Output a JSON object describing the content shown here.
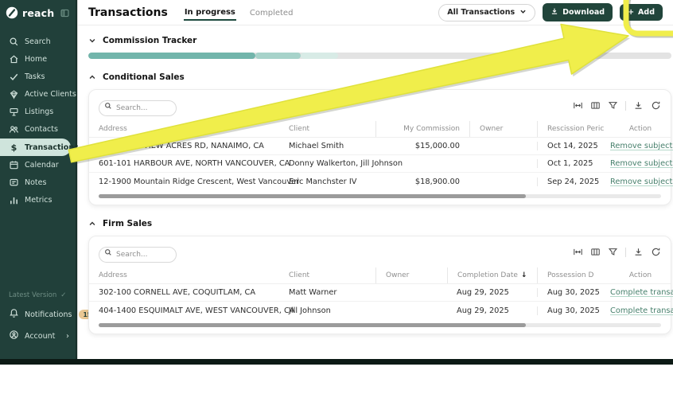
{
  "app": {
    "brand": "reach"
  },
  "sidebar": {
    "items": [
      {
        "label": "Search",
        "icon": "search-icon"
      },
      {
        "label": "Home",
        "icon": "home-icon"
      },
      {
        "label": "Tasks",
        "icon": "check-icon"
      },
      {
        "label": "Active Clients",
        "icon": "clients-gem-icon"
      },
      {
        "label": "Listings",
        "icon": "listing-sign-icon"
      },
      {
        "label": "Contacts",
        "icon": "contacts-icon"
      },
      {
        "label": "Transactions",
        "icon": "dollar-icon",
        "active": true
      },
      {
        "label": "Calendar",
        "icon": "calendar-icon"
      },
      {
        "label": "Notes",
        "icon": "notes-icon"
      },
      {
        "label": "Metrics",
        "icon": "metrics-icon"
      }
    ],
    "footer": {
      "version_label": "Latest Version",
      "version_check": "✓",
      "notifications_label": "Notifications",
      "notifications_count": "15",
      "account_label": "Account",
      "account_chevron": "›"
    }
  },
  "header": {
    "title": "Transactions",
    "tabs": [
      {
        "label": "In progress",
        "active": true
      },
      {
        "label": "Completed",
        "active": false
      }
    ],
    "filter_dropdown": "All Transactions",
    "download_label": "Download",
    "add_label": "Add",
    "add_plus": "+",
    "button_color": "#21453b"
  },
  "commission_tracker": {
    "title": "Commission Tracker",
    "track_color": "#e3e3e3",
    "segments": [
      {
        "color": "#72b5ab",
        "width_pct": 28.6
      },
      {
        "color": "#a7d3ca",
        "width_pct": 7.8
      },
      {
        "color": "#d8ebe6",
        "width_pct": 6.4
      }
    ]
  },
  "table_tools_icons": [
    "fit-columns-icon",
    "manage-columns-icon",
    "filter-icon",
    "download-icon",
    "refresh-icon"
  ],
  "conditional_sales": {
    "title": "Conditional Sales",
    "search_placeholder": "Search...",
    "columns": [
      "Address",
      "Client",
      "My Commission",
      "Owner",
      "Rescission Peric",
      "Action"
    ],
    "rows": [
      {
        "address": "2874 WESTVIEW ACRES RD, NANAIMO, CA",
        "client": "Michael Smith",
        "commission": "$15,000.00",
        "owner": "",
        "rescission": "Oct 14, 2025",
        "action": "Remove subjects"
      },
      {
        "address": "601-101 HARBOUR AVE, NORTH VANCOUVER, CA",
        "client": "Donny Walkerton, Jill Johnson",
        "commission": "",
        "owner": "",
        "rescission": "Oct 1, 2025",
        "action": "Remove subjects"
      },
      {
        "address": "12-1900 Mountain Ridge Crescent, West Vancouver",
        "client": "Eric Manchster IV",
        "commission": "$18,900.00",
        "owner": "",
        "rescission": "Sep 24, 2025",
        "action": "Remove subjects"
      }
    ]
  },
  "firm_sales": {
    "title": "Firm Sales",
    "search_placeholder": "Search...",
    "columns": [
      "Address",
      "Client",
      "Owner",
      "Completion Date",
      "Possession D",
      "Action"
    ],
    "sort_arrow": "↓",
    "rows": [
      {
        "address": "302-100 CORNELL AVE, COQUITLAM, CA",
        "client": "Matt Warner",
        "owner": "",
        "completion": "Aug 29, 2025",
        "possession": "Aug 30, 2025",
        "action": "Complete transaction"
      },
      {
        "address": "404-1400 ESQUIMALT AVE, WEST VANCOUVER, CA",
        "client": "Jill Johnson",
        "owner": "",
        "completion": "Aug 29, 2025",
        "possession": "Aug 30, 2025",
        "action": "Complete transaction"
      }
    ]
  },
  "annotation": {
    "arrow_color": "#f0ee4b",
    "arrow_edge_color": "#dfe13c"
  }
}
